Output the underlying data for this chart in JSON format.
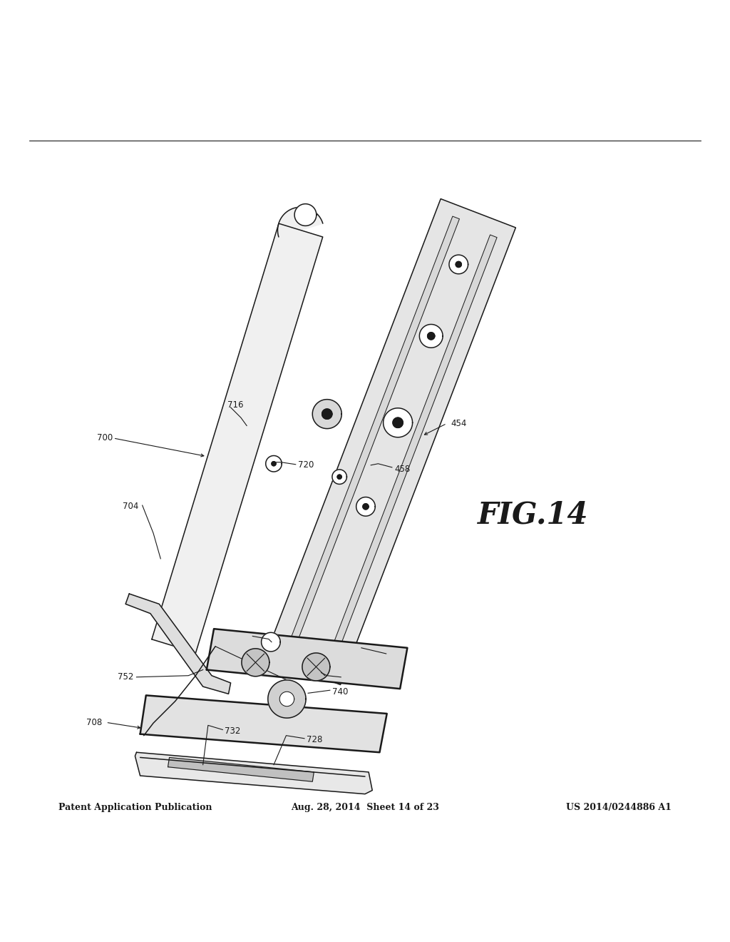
{
  "bg_color": "#ffffff",
  "line_color": "#1a1a1a",
  "header_left": "Patent Application Publication",
  "header_mid": "Aug. 28, 2014  Sheet 14 of 23",
  "header_right": "US 2014/0244886 A1",
  "fig_label": "FIG.14",
  "lw": 1.1,
  "lw_thick": 1.8
}
